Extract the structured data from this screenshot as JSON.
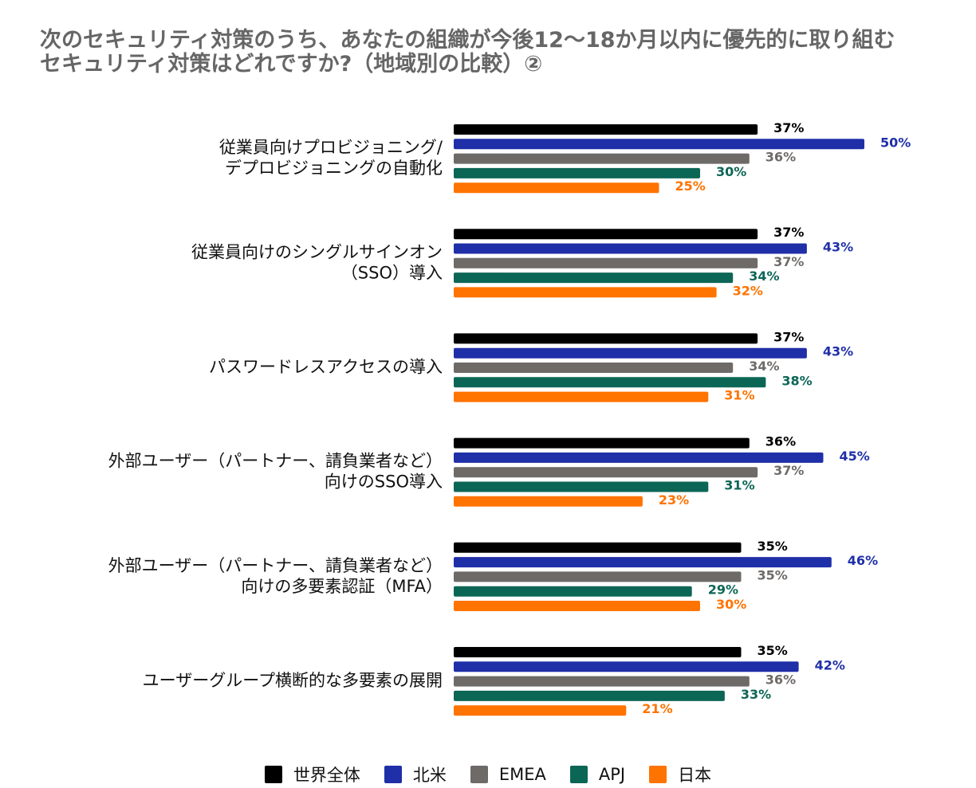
{
  "chart_data": {
    "type": "bar",
    "orientation": "horizontal",
    "title_lines": [
      "次のセキュリティ対策のうち、あなたの組織が今後12〜18か月以内に優先的に取り組む",
      "セキュリティ対策はどれですか?（地域別の比較）②"
    ],
    "categories": [
      [
        "従業員向けプロビジョニング/",
        "デプロビジョニングの自動化"
      ],
      [
        "従業員向けのシングルサインオン",
        "（SSO）導入"
      ],
      [
        "パスワードレスアクセスの導入"
      ],
      [
        "外部ユーザー（パートナー、請負業者など）",
        "向けのSSO導入"
      ],
      [
        "外部ユーザー（パートナー、請負業者など）",
        "向けの多要素認証（MFA）"
      ],
      [
        "ユーザーグループ横断的な多要素の展開"
      ]
    ],
    "series": [
      {
        "name": "世界全体",
        "color": "#000000",
        "label_color": "#000000",
        "values": [
          37,
          37,
          37,
          36,
          35,
          35
        ]
      },
      {
        "name": "北米",
        "color": "#1f2fa8",
        "label_color": "#1f2fa8",
        "values": [
          50,
          43,
          43,
          45,
          46,
          42
        ]
      },
      {
        "name": "EMEA",
        "color": "#6e6a67",
        "label_color": "#6e6a67",
        "values": [
          36,
          37,
          34,
          37,
          35,
          36
        ]
      },
      {
        "name": "APJ",
        "color": "#0c6656",
        "label_color": "#0c6656",
        "values": [
          30,
          34,
          38,
          31,
          29,
          33
        ]
      },
      {
        "name": "日本",
        "color": "#ff7300",
        "label_color": "#ff7300",
        "values": [
          25,
          32,
          31,
          23,
          30,
          21
        ]
      }
    ],
    "value_suffix": "%",
    "xlim": [
      0,
      50
    ],
    "grid": false,
    "legend_position": "bottom"
  }
}
